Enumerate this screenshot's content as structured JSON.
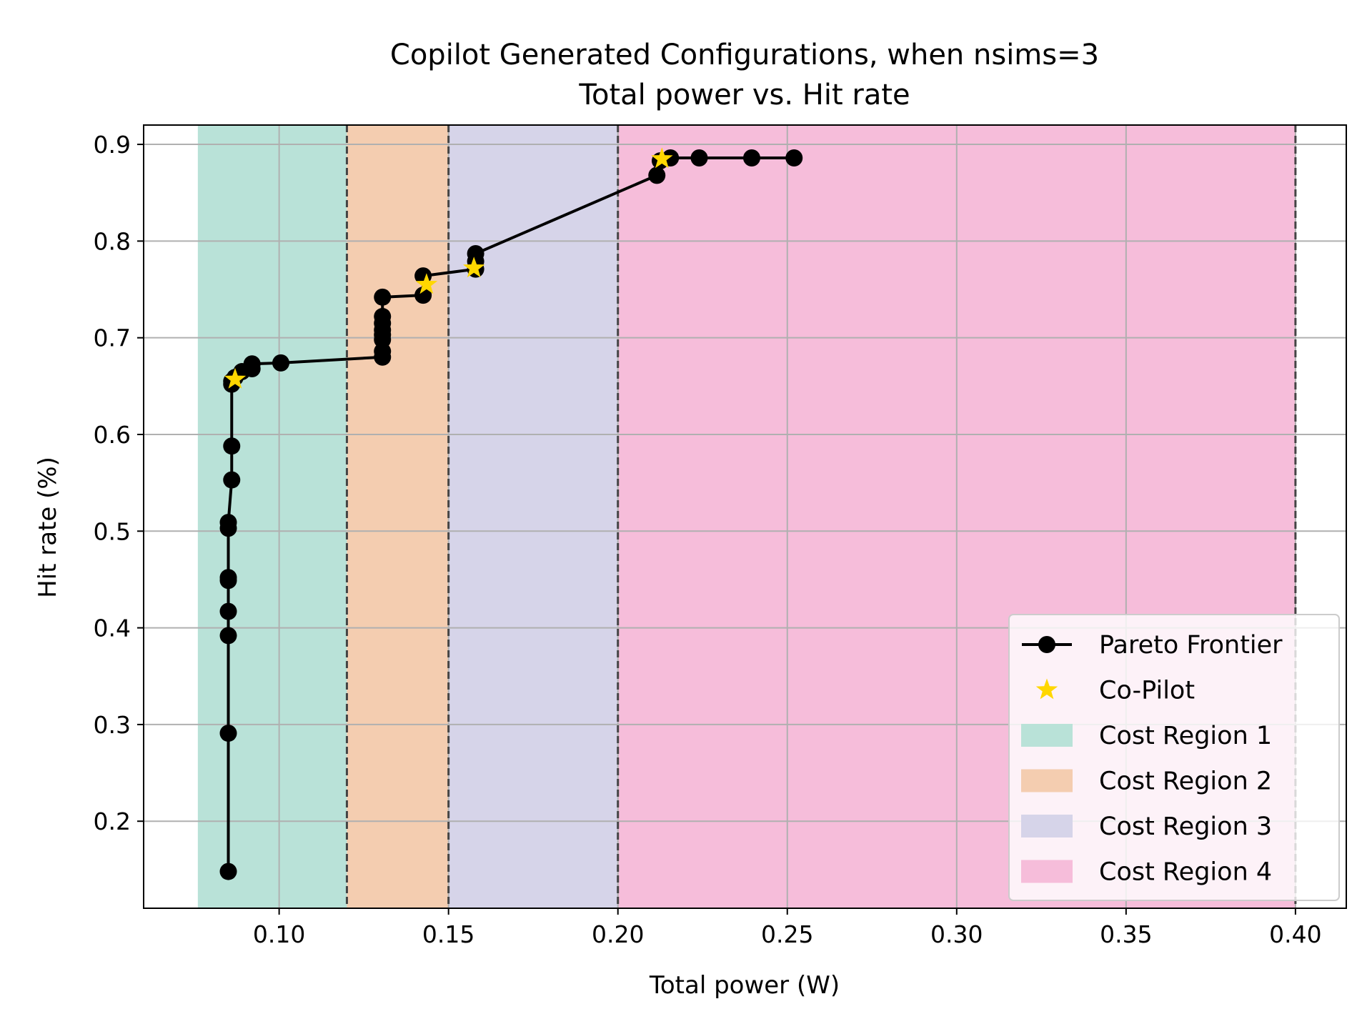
{
  "chart_data": {
    "type": "line",
    "title": "Copilot Generated Configurations, when nsims=3",
    "subtitle": "Total power vs. Hit rate",
    "xlabel": "Total power (W)",
    "ylabel": "Hit rate (%)",
    "xlim": [
      0.06,
      0.415
    ],
    "ylim": [
      0.11,
      0.92
    ],
    "xticks": [
      0.1,
      0.15,
      0.2,
      0.25,
      0.3,
      0.35,
      0.4
    ],
    "xtick_labels": [
      "0.10",
      "0.15",
      "0.20",
      "0.25",
      "0.30",
      "0.35",
      "0.40"
    ],
    "yticks": [
      0.2,
      0.3,
      0.4,
      0.5,
      0.6,
      0.7,
      0.8,
      0.9
    ],
    "ytick_labels": [
      "0.2",
      "0.3",
      "0.4",
      "0.5",
      "0.6",
      "0.7",
      "0.8",
      "0.9"
    ],
    "grid": true,
    "legend_position": "lower right",
    "regions": [
      {
        "name": "Cost Region 1",
        "x0": 0.076,
        "x1": 0.12,
        "color": "#b9e2d8"
      },
      {
        "name": "Cost Region 2",
        "x0": 0.12,
        "x1": 0.15,
        "color": "#f4cdb0"
      },
      {
        "name": "Cost Region 3",
        "x0": 0.15,
        "x1": 0.2,
        "color": "#d6d4e9"
      },
      {
        "name": "Cost Region 4",
        "x0": 0.2,
        "x1": 0.4,
        "color": "#f6bdda"
      }
    ],
    "boundaries": [
      0.12,
      0.15,
      0.2,
      0.4
    ],
    "series": [
      {
        "name": "Pareto Frontier",
        "color": "#000000",
        "marker": "circle",
        "points": [
          [
            0.085,
            0.148
          ],
          [
            0.085,
            0.291
          ],
          [
            0.085,
            0.392
          ],
          [
            0.085,
            0.417
          ],
          [
            0.085,
            0.449
          ],
          [
            0.085,
            0.452
          ],
          [
            0.085,
            0.503
          ],
          [
            0.085,
            0.509
          ],
          [
            0.086,
            0.553
          ],
          [
            0.086,
            0.588
          ],
          [
            0.086,
            0.652
          ],
          [
            0.086,
            0.655
          ],
          [
            0.087,
            0.659
          ],
          [
            0.089,
            0.665
          ],
          [
            0.092,
            0.668
          ],
          [
            0.092,
            0.673
          ],
          [
            0.1005,
            0.674
          ],
          [
            0.1305,
            0.68
          ],
          [
            0.1305,
            0.686
          ],
          [
            0.1305,
            0.698
          ],
          [
            0.1305,
            0.703
          ],
          [
            0.1305,
            0.708
          ],
          [
            0.1305,
            0.715
          ],
          [
            0.1305,
            0.722
          ],
          [
            0.1305,
            0.742
          ],
          [
            0.1425,
            0.744
          ],
          [
            0.1425,
            0.764
          ],
          [
            0.158,
            0.771
          ],
          [
            0.158,
            0.779
          ],
          [
            0.158,
            0.787
          ],
          [
            0.2115,
            0.868
          ],
          [
            0.2125,
            0.883
          ],
          [
            0.2155,
            0.886
          ],
          [
            0.224,
            0.886
          ],
          [
            0.2395,
            0.886
          ],
          [
            0.252,
            0.886
          ]
        ]
      },
      {
        "name": "Co-Pilot",
        "color": "#ffd700",
        "marker": "star",
        "points": [
          [
            0.087,
            0.657
          ],
          [
            0.1435,
            0.755
          ],
          [
            0.1575,
            0.772
          ],
          [
            0.213,
            0.885
          ]
        ]
      }
    ]
  }
}
